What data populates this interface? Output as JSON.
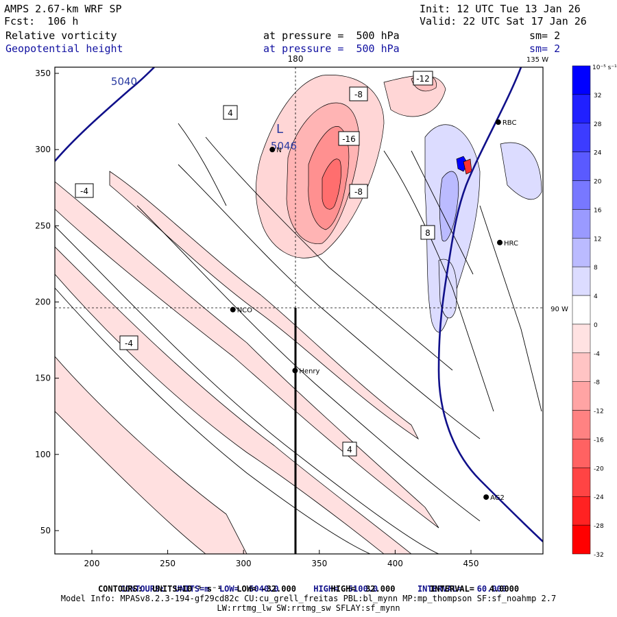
{
  "header": {
    "model_title": "AMPS 2.67-km WRF SP",
    "forecast": "Fcst:  106 h",
    "field1": "Relative vorticity",
    "field2": "Geopotential height",
    "pressure1": "at pressure =  500 hPa",
    "pressure2": "at pressure =  500 hPa",
    "init": "Init: 12 UTC Tue 13 Jan 26",
    "valid": "Valid: 22 UTC Sat 17 Jan 26",
    "sm1": "sm= 2",
    "sm2": "sm= 2"
  },
  "map": {
    "lon_labels": {
      "top_180": "180",
      "top_135w": "135 W",
      "right_90w": "90 W"
    },
    "x_ticks": [
      "200",
      "250",
      "300",
      "350",
      "400",
      "450"
    ],
    "y_ticks": [
      "350",
      "300",
      "250",
      "200",
      "150",
      "100",
      "50"
    ],
    "stations": [
      {
        "name": "RBC",
        "x": 468,
        "y": 318
      },
      {
        "name": "N",
        "x": 319,
        "y": 300
      },
      {
        "name": "HRC",
        "x": 469,
        "y": 239
      },
      {
        "name": "NCO",
        "x": 293,
        "y": 195
      },
      {
        "name": "Henry",
        "x": 334,
        "y": 155
      },
      {
        "name": "AG2",
        "x": 460,
        "y": 72
      }
    ],
    "low_marker": {
      "letter": "L",
      "value": "5046"
    },
    "height_contour_label": "5040",
    "vorticity_labels": [
      "-12",
      "-8",
      "-16",
      "-8",
      "-4",
      "4",
      "8",
      "-4",
      "4"
    ]
  },
  "colorbar": {
    "units": "10⁻⁵ s⁻¹",
    "labels": [
      "32",
      "28",
      "24",
      "20",
      "16",
      "12",
      "8",
      "4",
      "0",
      "-4",
      "-8",
      "-12",
      "-16",
      "-20",
      "-24",
      "-28",
      "-32"
    ],
    "colors": [
      "#0000ff",
      "#2020ff",
      "#3c3cff",
      "#5a5aff",
      "#7878ff",
      "#9a9aff",
      "#bbbbff",
      "#dcdcff",
      "#ffffff",
      "#ffe2e2",
      "#ffc4c4",
      "#ffa4a4",
      "#ff8282",
      "#ff6262",
      "#ff4444",
      "#ff2222",
      "#ff0000"
    ]
  },
  "footer": {
    "line1_contours": "CONTOURS:",
    "line1_units": "UNITS=m",
    "line1_low": "LOW=  5040.0",
    "line1_high": "HIGH=  5100.0",
    "line1_interval": "INTERVAL=   60.000",
    "line2": "CONTOURS:  UNITS=10⁻⁵ s⁻¹   LOW= -32.000       HIGH=  32.000       INTERVAL=   4.0000",
    "line3": "Model Info: MPASv8.2.3-194-gf29cd82c CU:cu_grell_freitas PBL:bl_mynn MP:mp_thompson SF:sf_noahmp 2.7",
    "line4": "LW:rrtmg_lw SW:rrtmg_sw SFLAY:sf_mynn"
  }
}
